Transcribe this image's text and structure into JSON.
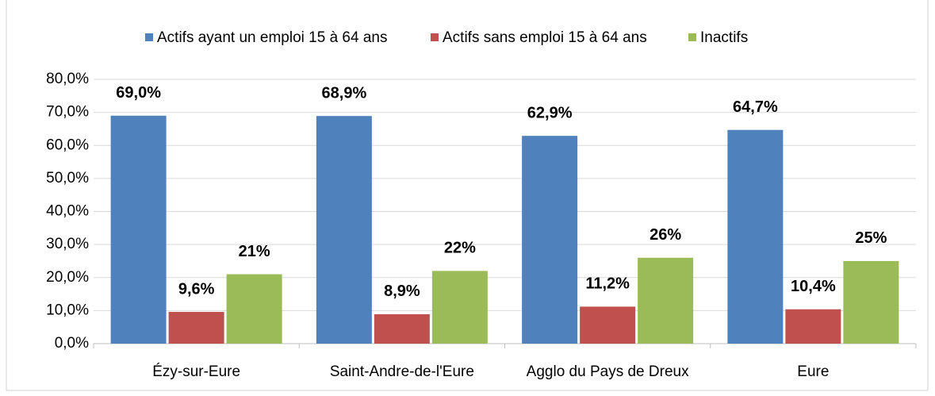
{
  "chart_data": {
    "type": "bar",
    "categories": [
      "Ézy-sur-Eure",
      "Saint-Andre-de-l'Eure",
      "Agglo du Pays de Dreux",
      "Eure"
    ],
    "series": [
      {
        "name": "Actifs ayant un emploi 15 à 64 ans",
        "color": "#4f81bd",
        "values": [
          69.0,
          68.9,
          62.9,
          64.7
        ],
        "value_labels": [
          "69,0%",
          "68,9%",
          "62,9%",
          "64,7%"
        ]
      },
      {
        "name": "Actifs sans emploi 15 à 64 ans",
        "color": "#c0504d",
        "values": [
          9.6,
          8.9,
          11.2,
          10.4
        ],
        "value_labels": [
          "9,6%",
          "8,9%",
          "11,2%",
          "10,4%"
        ]
      },
      {
        "name": "Inactifs",
        "color": "#9bbb59",
        "values": [
          21,
          22,
          26,
          25
        ],
        "value_labels": [
          "21%",
          "22%",
          "26%",
          "25%"
        ]
      }
    ],
    "ylim": [
      0,
      80
    ],
    "yticks": [
      {
        "value": 0,
        "label": "0,0%"
      },
      {
        "value": 10,
        "label": "10,0%"
      },
      {
        "value": 20,
        "label": "20,0%"
      },
      {
        "value": 30,
        "label": "30,0%"
      },
      {
        "value": 40,
        "label": "40,0%"
      },
      {
        "value": 50,
        "label": "50,0%"
      },
      {
        "value": 60,
        "label": "60,0%"
      },
      {
        "value": 70,
        "label": "70,0%"
      },
      {
        "value": 80,
        "label": "80,0%"
      }
    ],
    "grid": true,
    "legend": "top"
  }
}
